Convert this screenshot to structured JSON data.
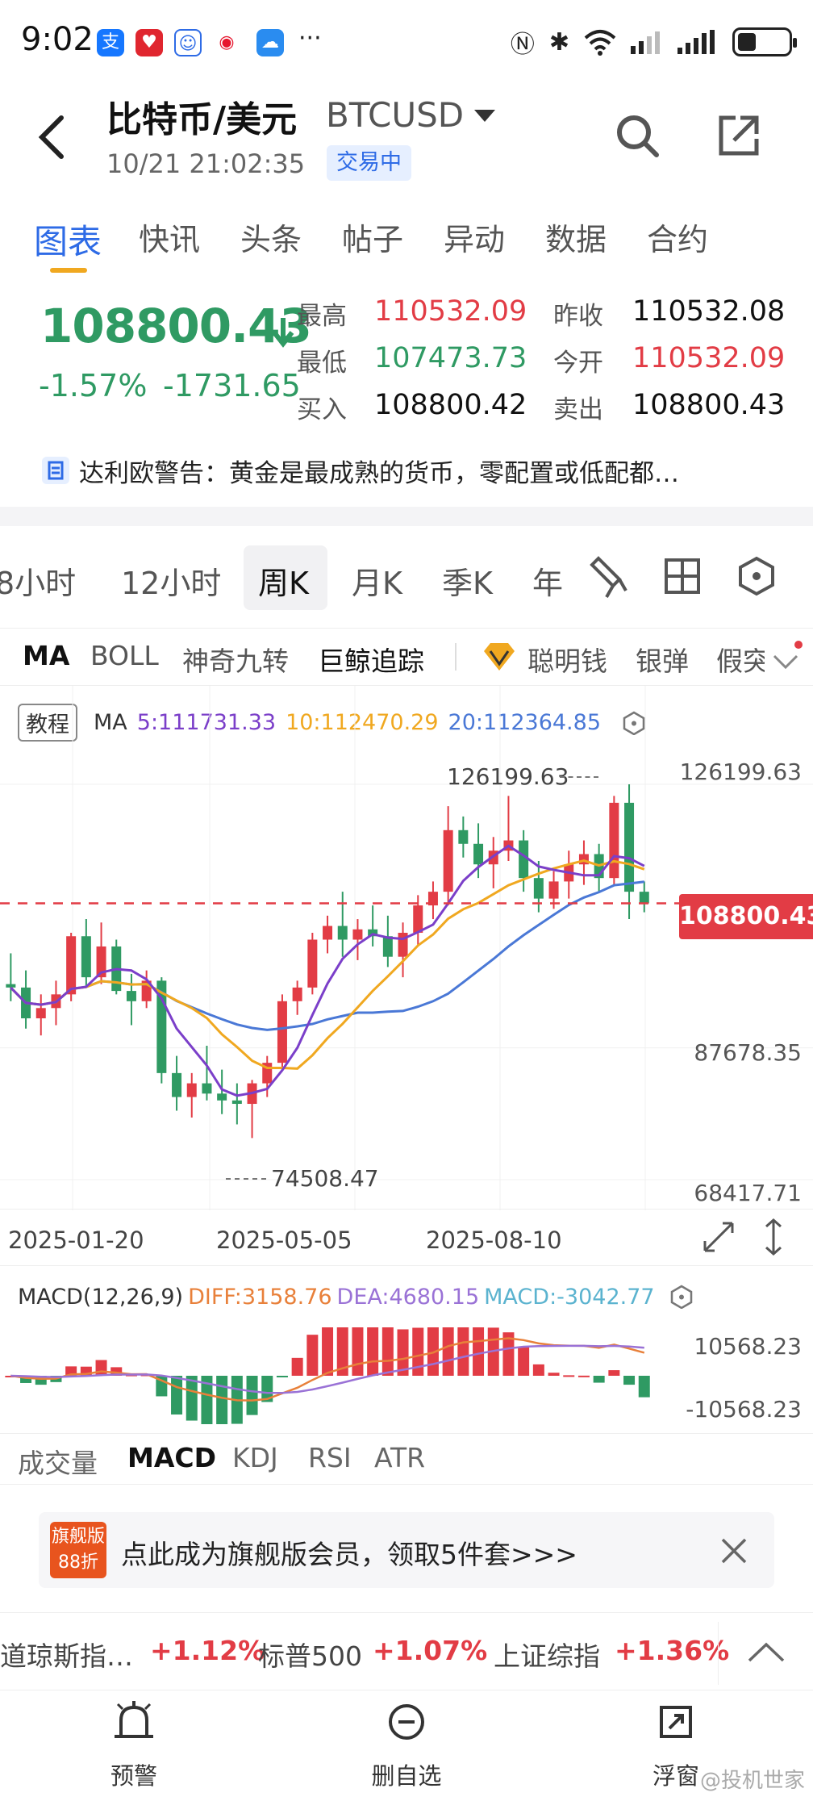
{
  "status_bar": {
    "time": "9:02",
    "more": "···"
  },
  "header": {
    "title": "比特币/美元",
    "symbol": "BTCUSD",
    "timestamp": "10/21 21:02:35",
    "trading_status": "交易中"
  },
  "top_tabs": [
    "图表",
    "快讯",
    "头条",
    "帖子",
    "异动",
    "数据",
    "合约"
  ],
  "quote": {
    "last": "108800.43",
    "pct_change": "-1.57%",
    "abs_change": "-1731.65",
    "stats": [
      {
        "label": "最高",
        "value": "110532.09",
        "color": "red"
      },
      {
        "label": "昨收",
        "value": "110532.08",
        "color": "black"
      },
      {
        "label": "最低",
        "value": "107473.73",
        "color": "green"
      },
      {
        "label": "今开",
        "value": "110532.09",
        "color": "red"
      },
      {
        "label": "买入",
        "value": "108800.42",
        "color": "black"
      },
      {
        "label": "卖出",
        "value": "108800.43",
        "color": "black"
      }
    ]
  },
  "news_headline": "达利欧警告：黄金是最成熟的货币，零配置或低配都…",
  "periods": [
    "8小时",
    "12小时",
    "周K",
    "月K",
    "季K",
    "年"
  ],
  "active_period": "周K",
  "indicators": [
    "MA",
    "BOLL",
    "神奇九转",
    "巨鲸追踪",
    "聪明钱",
    "银弹",
    "假突"
  ],
  "chart": {
    "tutorial_label": "教程",
    "ma_label": "MA",
    "ma5": "5:111731.33",
    "ma10": "10:112470.29",
    "ma20": "20:112364.85",
    "max_label": "126199.63",
    "min_label": "74508.47",
    "y_axis": [
      "126199.63",
      "87678.35",
      "68417.71"
    ],
    "last_price_tag": "108800.43",
    "dates": [
      "2025-01-20",
      "2025-05-05",
      "2025-08-10"
    ],
    "macd_title": "MACD(12,26,9)",
    "diff": "DIFF:3158.76",
    "dea": "DEA:4680.15",
    "macd": "MACD:-3042.77",
    "macd_axis": [
      "10568.23",
      "-10568.23"
    ],
    "colors": {
      "up": "#e23c45",
      "down": "#2f9a63",
      "ma5": "#7b3fc9",
      "ma10": "#f0a820",
      "ma20": "#4a78d6"
    }
  },
  "chart_data": {
    "type": "candlestick",
    "interval": "weekly",
    "ylim": [
      68417.71,
      126199.63
    ],
    "x_ticks": [
      "2025-01-20",
      "2025-05-05",
      "2025-08-10"
    ],
    "candles": [
      [
        97000,
        101500,
        94500,
        96500
      ],
      [
        96500,
        99000,
        90500,
        92000
      ],
      [
        92000,
        95500,
        89500,
        93500
      ],
      [
        93500,
        97500,
        91000,
        95500
      ],
      [
        95500,
        104500,
        94500,
        104000
      ],
      [
        104000,
        106500,
        96500,
        98000
      ],
      [
        98000,
        106000,
        97000,
        102500
      ],
      [
        102500,
        103500,
        95500,
        96000
      ],
      [
        96000,
        98500,
        91000,
        94500
      ],
      [
        94500,
        99000,
        93500,
        97500
      ],
      [
        97500,
        98000,
        82500,
        84000
      ],
      [
        84000,
        86500,
        78500,
        80500
      ],
      [
        80500,
        84000,
        77500,
        82500
      ],
      [
        82500,
        88000,
        80000,
        81000
      ],
      [
        81000,
        84500,
        78000,
        80000
      ],
      [
        80000,
        82500,
        76500,
        79500
      ],
      [
        79500,
        83000,
        74500,
        82500
      ],
      [
        82500,
        86500,
        80500,
        85500
      ],
      [
        85500,
        95500,
        84500,
        94500
      ],
      [
        94500,
        97500,
        92500,
        96500
      ],
      [
        96500,
        104500,
        95500,
        103500
      ],
      [
        103500,
        107000,
        101500,
        105500
      ],
      [
        105500,
        110500,
        101000,
        103500
      ],
      [
        103500,
        106500,
        100500,
        105000
      ],
      [
        105000,
        108500,
        102500,
        104000
      ],
      [
        104000,
        107000,
        99500,
        101000
      ],
      [
        101000,
        106000,
        98000,
        104500
      ],
      [
        104500,
        110000,
        102500,
        108500
      ],
      [
        108500,
        112000,
        106500,
        110500
      ],
      [
        110500,
        123000,
        108500,
        119500
      ],
      [
        119500,
        121500,
        115500,
        117500
      ],
      [
        117500,
        120500,
        112500,
        114500
      ],
      [
        114500,
        118500,
        111000,
        116500
      ],
      [
        116500,
        124500,
        115000,
        118000
      ],
      [
        118000,
        119500,
        110500,
        112500
      ],
      [
        112500,
        115000,
        107500,
        109500
      ],
      [
        109500,
        113500,
        108000,
        112000
      ],
      [
        112000,
        116500,
        109500,
        114500
      ],
      [
        114500,
        118000,
        111500,
        116000
      ],
      [
        116000,
        117500,
        110500,
        112500
      ],
      [
        112500,
        124500,
        111500,
        123500
      ],
      [
        123500,
        126199.63,
        106500,
        110500
      ],
      [
        110500,
        112000,
        107500,
        108800.43
      ]
    ]
  },
  "sub_indicators": [
    "成交量",
    "MACD",
    "KDJ",
    "RSI",
    "ATR"
  ],
  "active_sub_indicator": "MACD",
  "promo": {
    "badge_line1": "旗舰版",
    "badge_line2": "88折",
    "text": "点此成为旗舰版会员，领取5件套>>>"
  },
  "ticker": [
    {
      "name": "道琼斯指…",
      "change": "+1.12%"
    },
    {
      "name": "标普500",
      "change": "+1.07%"
    },
    {
      "name": "上证综指",
      "change": "+1.36%"
    }
  ],
  "bottom_nav": [
    {
      "label": "预警",
      "icon": "alarm-bell-icon"
    },
    {
      "label": "删自选",
      "icon": "remove-watchlist-icon"
    },
    {
      "label": "浮窗",
      "icon": "floating-window-icon"
    }
  ],
  "watermark": "@投机世家"
}
